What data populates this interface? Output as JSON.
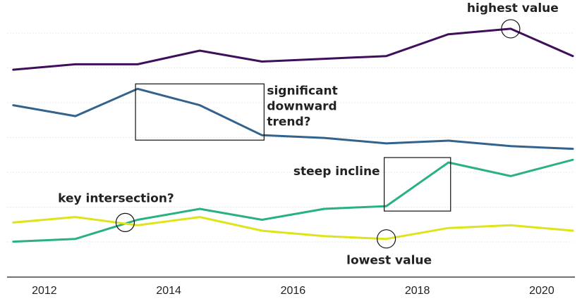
{
  "chart_data": {
    "type": "line",
    "title": "",
    "xlabel": "",
    "ylabel": "",
    "x": [
      2011.5,
      2012.5,
      2013.5,
      2014.5,
      2015.5,
      2016.5,
      2017.5,
      2018.5,
      2019.5,
      2020.5
    ],
    "x_ticks": [
      "2012",
      "2014",
      "2016",
      "2018",
      "2020"
    ],
    "x_tick_values": [
      2012,
      2014,
      2016,
      2018,
      2020
    ],
    "xlim": [
      2011.4,
      2020.5
    ],
    "ylim": [
      0,
      100
    ],
    "grid": true,
    "legend": "none",
    "series": [
      {
        "color": "#3f0f5c",
        "values": [
          76,
          78,
          78,
          83,
          79,
          80,
          81,
          89,
          91,
          81
        ]
      },
      {
        "color": "#33638d",
        "values": [
          63,
          59,
          69,
          63,
          52,
          51,
          49,
          50,
          48,
          47
        ]
      },
      {
        "color": "#2ab183",
        "values": [
          13,
          14,
          21,
          25,
          21,
          25,
          26,
          42,
          37,
          43
        ]
      },
      {
        "color": "#dfe31a",
        "values": [
          20,
          22,
          19,
          22,
          17,
          15,
          14,
          18,
          19,
          17
        ]
      }
    ],
    "annotations": [
      {
        "id": "highest",
        "kind": "circle",
        "text": "highest value",
        "x": 2019.5,
        "y": 91,
        "series": 0
      },
      {
        "id": "downward",
        "kind": "box",
        "text": [
          "significant",
          "downward",
          "trend?"
        ],
        "x_range": [
          2013.5,
          2015.5
        ],
        "y_range": [
          52,
          69
        ],
        "series": 1
      },
      {
        "id": "incline",
        "kind": "box",
        "text": "steep incline",
        "x_range": [
          2017.5,
          2018.5
        ],
        "y_range": [
          26,
          42
        ],
        "series": 2
      },
      {
        "id": "intersection",
        "kind": "circle",
        "text": "key intersection?",
        "x": 2013.3,
        "y": 20,
        "series": 2
      },
      {
        "id": "lowest",
        "kind": "circle",
        "text": "lowest value",
        "x": 2017.5,
        "y": 14,
        "series": 3
      }
    ]
  }
}
